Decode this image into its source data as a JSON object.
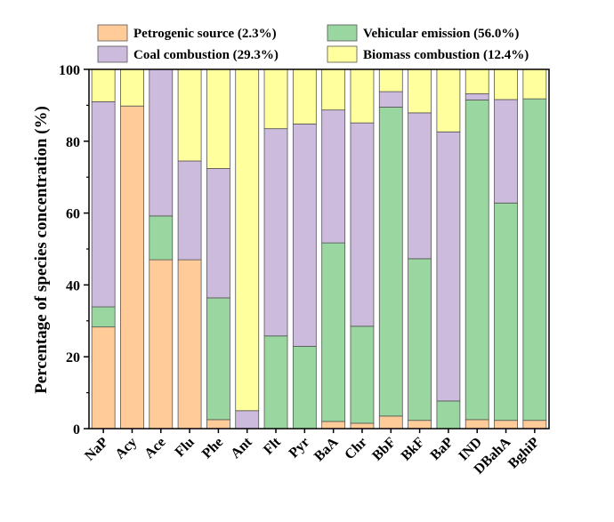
{
  "chart_data": {
    "type": "bar",
    "stacked": true,
    "categories": [
      "NaP",
      "Acy",
      "Ace",
      "Flu",
      "Phe",
      "Ant",
      "Flt",
      "Pyr",
      "BaA",
      "Chr",
      "BbF",
      "BkF",
      "BaP",
      "IND",
      "DBahA",
      "BghiP"
    ],
    "series": [
      {
        "name": "Petrogenic source (2.3%)",
        "color": "#FFCC99",
        "values": [
          28.3,
          89.8,
          47.0,
          47.0,
          2.5,
          0.0,
          0.0,
          0.0,
          2.0,
          1.5,
          3.5,
          2.3,
          0.0,
          2.5,
          2.3,
          2.3
        ]
      },
      {
        "name": "Vehicular emission (56.0%)",
        "color": "#99D6A0",
        "values": [
          5.6,
          0.0,
          12.2,
          0.0,
          33.9,
          0.0,
          25.8,
          22.9,
          49.7,
          27.0,
          86.0,
          45.0,
          7.7,
          89.0,
          60.5,
          89.5
        ]
      },
      {
        "name": "Coal combustion (29.3%)",
        "color": "#CDBBDD",
        "values": [
          57.1,
          0.0,
          40.8,
          27.5,
          36.0,
          5.0,
          57.7,
          61.9,
          37.0,
          56.6,
          4.3,
          40.6,
          74.9,
          1.7,
          28.8,
          0.0
        ]
      },
      {
        "name": "Biomass combustion (12.4%)",
        "color": "#FFFF9E",
        "values": [
          9.0,
          10.2,
          0.0,
          25.5,
          27.6,
          95.0,
          16.5,
          15.2,
          11.3,
          14.9,
          6.2,
          12.1,
          17.4,
          6.8,
          8.4,
          8.2
        ]
      }
    ],
    "ylabel": "Percentage of species concentration (%)",
    "xlabel": "",
    "ylim": [
      0,
      100
    ],
    "yticks": [
      "0",
      "20",
      "40",
      "60",
      "80",
      "100"
    ],
    "legend_position": "top"
  }
}
